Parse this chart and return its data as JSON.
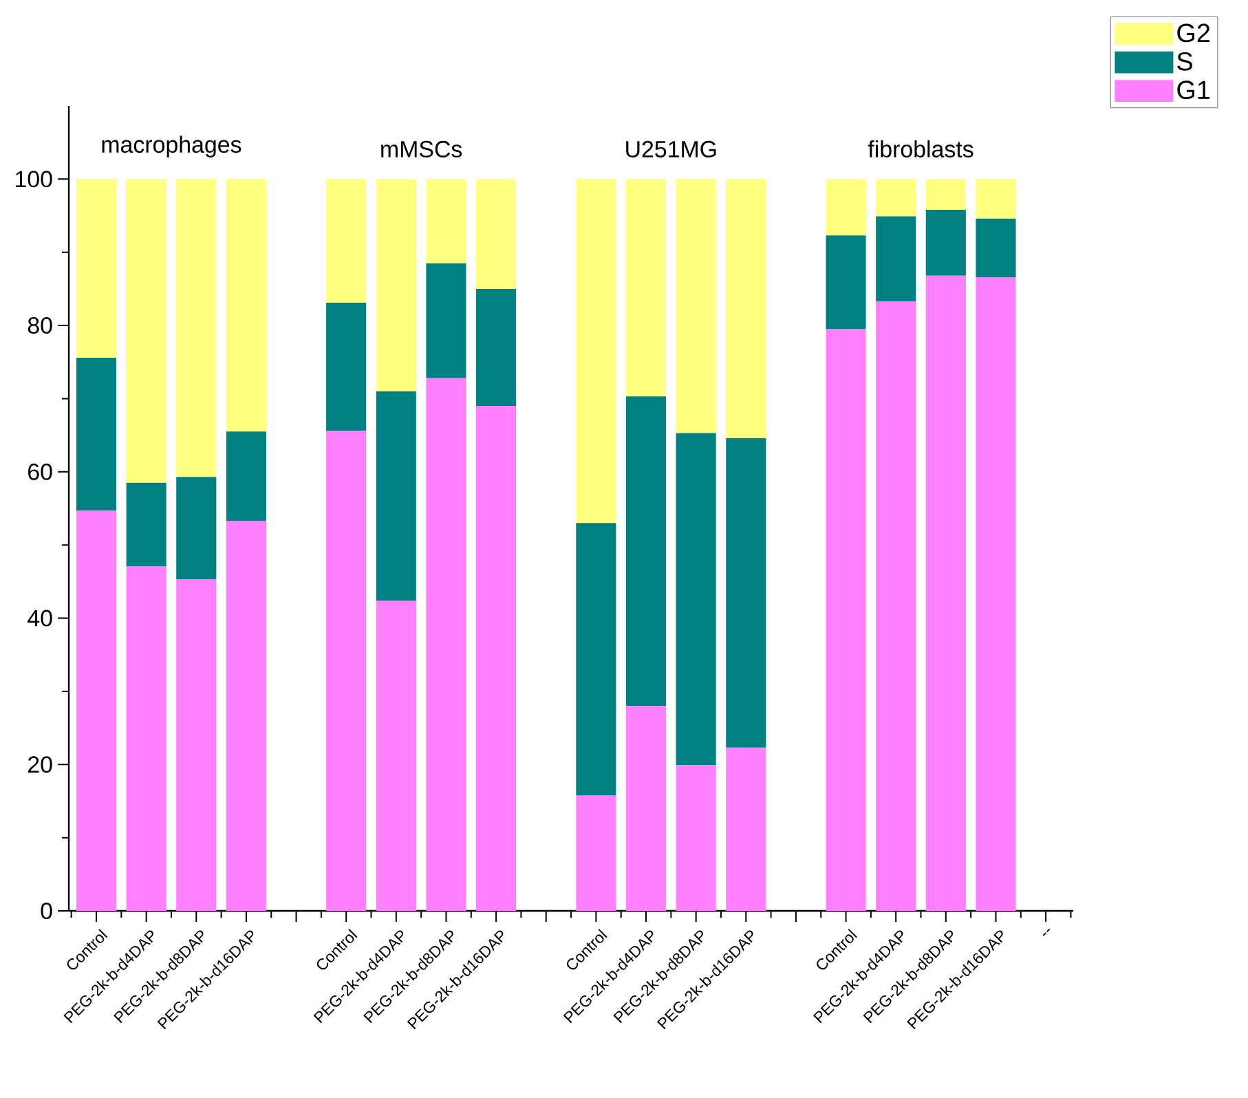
{
  "chart_data": {
    "type": "bar",
    "stacked": true,
    "categories": [
      "Control",
      "PEG-2k-b-d4DAP",
      "PEG-2k-b-d8DAP",
      "PEG-2k-b-d16DAP",
      null,
      "Control",
      "PEG-2k-b-d4DAP",
      "PEG-2k-b-d8DAP",
      "PEG-2k-b-d16DAP",
      null,
      "Control",
      "PEG-2k-b-d4DAP",
      "PEG-2k-b-d8DAP",
      "PEG-2k-b-d16DAP",
      null,
      "Control",
      "PEG-2k-b-d4DAP",
      "PEG-2k-b-d8DAP",
      "PEG-2k-b-d16DAP",
      "--"
    ],
    "series": [
      {
        "name": "G1",
        "color": "#ff80ff",
        "values": [
          54.7,
          47.1,
          45.3,
          53.3,
          null,
          65.6,
          42.4,
          72.8,
          69.0,
          null,
          15.8,
          28.0,
          19.9,
          22.3,
          null,
          79.5,
          83.3,
          86.8,
          86.6,
          null
        ]
      },
      {
        "name": "S",
        "color": "#008080",
        "values": [
          20.9,
          11.4,
          14.0,
          12.2,
          null,
          17.5,
          28.6,
          15.7,
          16.0,
          null,
          37.2,
          42.3,
          45.4,
          42.3,
          null,
          12.8,
          11.6,
          9.0,
          8.0,
          null
        ]
      },
      {
        "name": "G2",
        "color": "#ffff80",
        "values": [
          24.4,
          41.5,
          40.7,
          34.5,
          null,
          16.9,
          29.0,
          11.5,
          15.0,
          null,
          47.0,
          29.7,
          34.7,
          35.4,
          null,
          7.7,
          5.1,
          4.2,
          5.4,
          null
        ]
      }
    ],
    "annotations": [
      "macrophages",
      "mMSCs",
      "U251MG",
      "fibroblasts"
    ],
    "ylim": [
      0,
      110
    ],
    "yticks": [
      0,
      20,
      40,
      60,
      80,
      100
    ],
    "grid": false,
    "legend": "top right"
  }
}
